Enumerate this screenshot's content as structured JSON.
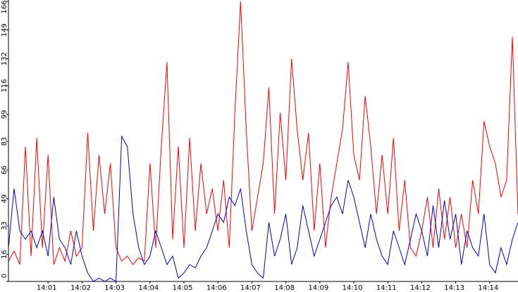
{
  "chart_data": {
    "type": "line",
    "categories": [
      null,
      null,
      null,
      null,
      null,
      null,
      null,
      "14:01",
      null,
      null,
      null,
      null,
      null,
      "14:02",
      null,
      null,
      null,
      null,
      null,
      "14:03",
      null,
      null,
      null,
      null,
      null,
      "14:04",
      null,
      null,
      null,
      null,
      null,
      "14:05",
      null,
      null,
      null,
      null,
      null,
      "14:06",
      null,
      null,
      null,
      null,
      null,
      "14:07",
      null,
      null,
      null,
      null,
      null,
      "14:08",
      null,
      null,
      null,
      null,
      null,
      "14:09",
      null,
      null,
      null,
      null,
      null,
      "14:10",
      null,
      null,
      null,
      null,
      null,
      "14:11",
      null,
      null,
      null,
      null,
      null,
      "14:12",
      null,
      null,
      null,
      null,
      null,
      "14:13",
      null,
      null,
      null,
      null,
      null,
      "14:14",
      null,
      null,
      null,
      null,
      null
    ],
    "series": [
      {
        "color": "#ff0000",
        "values": [
          12,
          18,
          10,
          80,
          15,
          85,
          20,
          75,
          10,
          20,
          12,
          30,
          15,
          20,
          88,
          30,
          75,
          40,
          70,
          20,
          12,
          15,
          10,
          14,
          12,
          70,
          20,
          80,
          130,
          25,
          80,
          20,
          85,
          30,
          70,
          40,
          55,
          30,
          60,
          20,
          100,
          166,
          90,
          30,
          50,
          70,
          115,
          40,
          100,
          60,
          132,
          90,
          60,
          88,
          30,
          70,
          20,
          50,
          70,
          90,
          130,
          75,
          60,
          110,
          80,
          40,
          75,
          40,
          85,
          30,
          60,
          20,
          15,
          30,
          50,
          20,
          55,
          25,
          50,
          20,
          40,
          20,
          60,
          40,
          95,
          80,
          70,
          50,
          60,
          145,
          40
        ]
      },
      {
        "color": "#0000cc",
        "values": [
          20,
          55,
          30,
          25,
          30,
          20,
          30,
          15,
          50,
          25,
          20,
          10,
          30,
          15,
          5,
          0,
          2,
          0,
          2,
          0,
          86,
          80,
          40,
          20,
          10,
          15,
          30,
          20,
          10,
          15,
          2,
          5,
          10,
          8,
          15,
          20,
          30,
          40,
          35,
          50,
          45,
          55,
          30,
          10,
          5,
          2,
          35,
          15,
          25,
          40,
          10,
          20,
          45,
          30,
          15,
          25,
          35,
          45,
          50,
          40,
          60,
          50,
          35,
          20,
          40,
          25,
          15,
          10,
          30,
          20,
          10,
          25,
          40,
          30,
          15,
          45,
          20,
          48,
          25,
          40,
          10,
          30,
          20,
          15,
          40,
          10,
          5,
          20,
          10,
          25,
          35
        ]
      }
    ],
    "ylim": [
      0,
      166
    ],
    "yticks": [
      0,
      16,
      33,
      49,
      66,
      83,
      99,
      116,
      132,
      149,
      166
    ]
  }
}
